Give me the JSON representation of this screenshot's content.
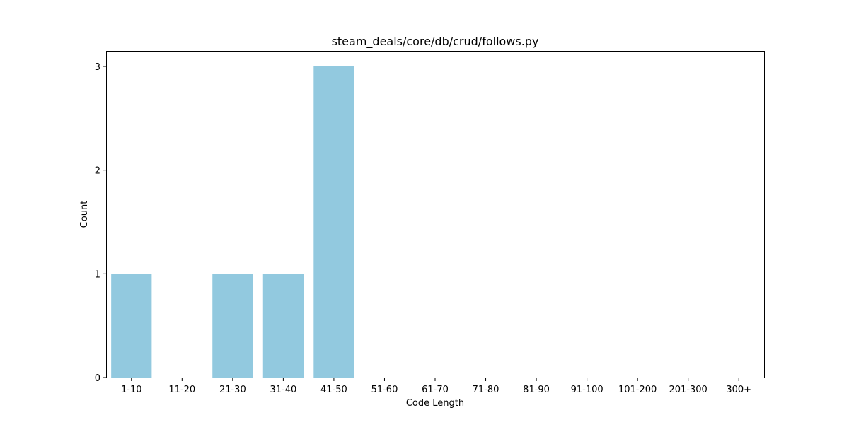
{
  "chart_data": {
    "type": "bar",
    "title": "steam_deals/core/db/crud/follows.py",
    "xlabel": "Code Length",
    "ylabel": "Count",
    "categories": [
      "1-10",
      "11-20",
      "21-30",
      "31-40",
      "41-50",
      "51-60",
      "61-70",
      "71-80",
      "81-90",
      "91-100",
      "101-200",
      "201-300",
      "300+"
    ],
    "values": [
      1,
      0,
      1,
      1,
      3,
      0,
      0,
      0,
      0,
      0,
      0,
      0,
      0
    ],
    "ylim": [
      0,
      3.15
    ],
    "yticks": [
      "0",
      "1",
      "2",
      "3"
    ],
    "bar_color": "#92c9df",
    "grid": false,
    "legend": "none"
  }
}
